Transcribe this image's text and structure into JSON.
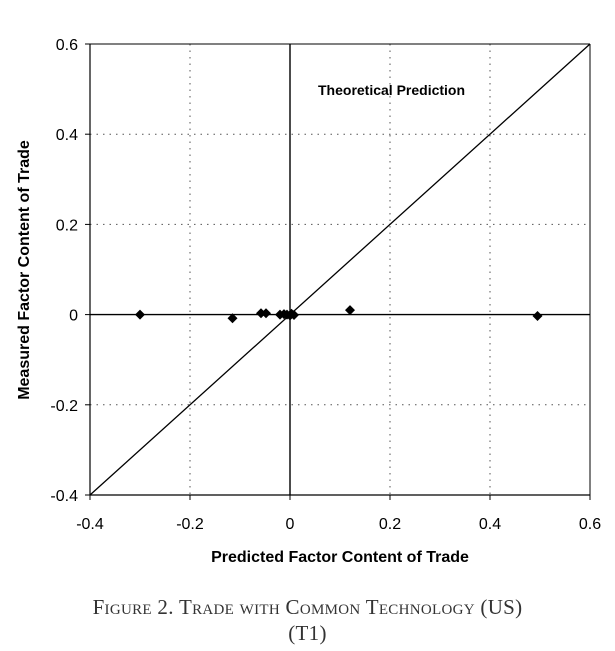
{
  "chart_data": {
    "type": "scatter",
    "title": "",
    "xlabel": "Predicted Factor Content of Trade",
    "ylabel": "Measured Factor Content of Trade",
    "xlim": [
      -0.4,
      0.6
    ],
    "ylim": [
      -0.4,
      0.6
    ],
    "x_ticks": [
      -0.4,
      -0.2,
      0,
      0.2,
      0.4,
      0.6
    ],
    "y_ticks": [
      -0.4,
      -0.2,
      0,
      0.2,
      0.4,
      0.6
    ],
    "x_tick_labels": [
      "-0.4",
      "-0.2",
      "0",
      "0.2",
      "0.4",
      "0.6"
    ],
    "y_tick_labels": [
      "-0.4",
      "-0.2",
      "0",
      "0.2",
      "0.4",
      "0.6"
    ],
    "grid": true,
    "points": [
      {
        "x": -0.3,
        "y": 0.0
      },
      {
        "x": -0.115,
        "y": -0.008
      },
      {
        "x": -0.058,
        "y": 0.003
      },
      {
        "x": -0.048,
        "y": 0.003
      },
      {
        "x": -0.02,
        "y": 0.0
      },
      {
        "x": -0.012,
        "y": 0.001
      },
      {
        "x": -0.006,
        "y": 0.0
      },
      {
        "x": 0.0,
        "y": -0.002
      },
      {
        "x": 0.003,
        "y": 0.002
      },
      {
        "x": 0.008,
        "y": -0.001
      },
      {
        "x": 0.12,
        "y": 0.01
      },
      {
        "x": 0.495,
        "y": -0.003
      }
    ],
    "reference_line": {
      "label": "Theoretical Prediction",
      "from": [
        -0.4,
        -0.4
      ],
      "to": [
        0.6,
        0.6
      ]
    }
  },
  "caption": {
    "line1": "Figure 2.  Trade with Common Technology (US)",
    "line2": "(T1)"
  }
}
